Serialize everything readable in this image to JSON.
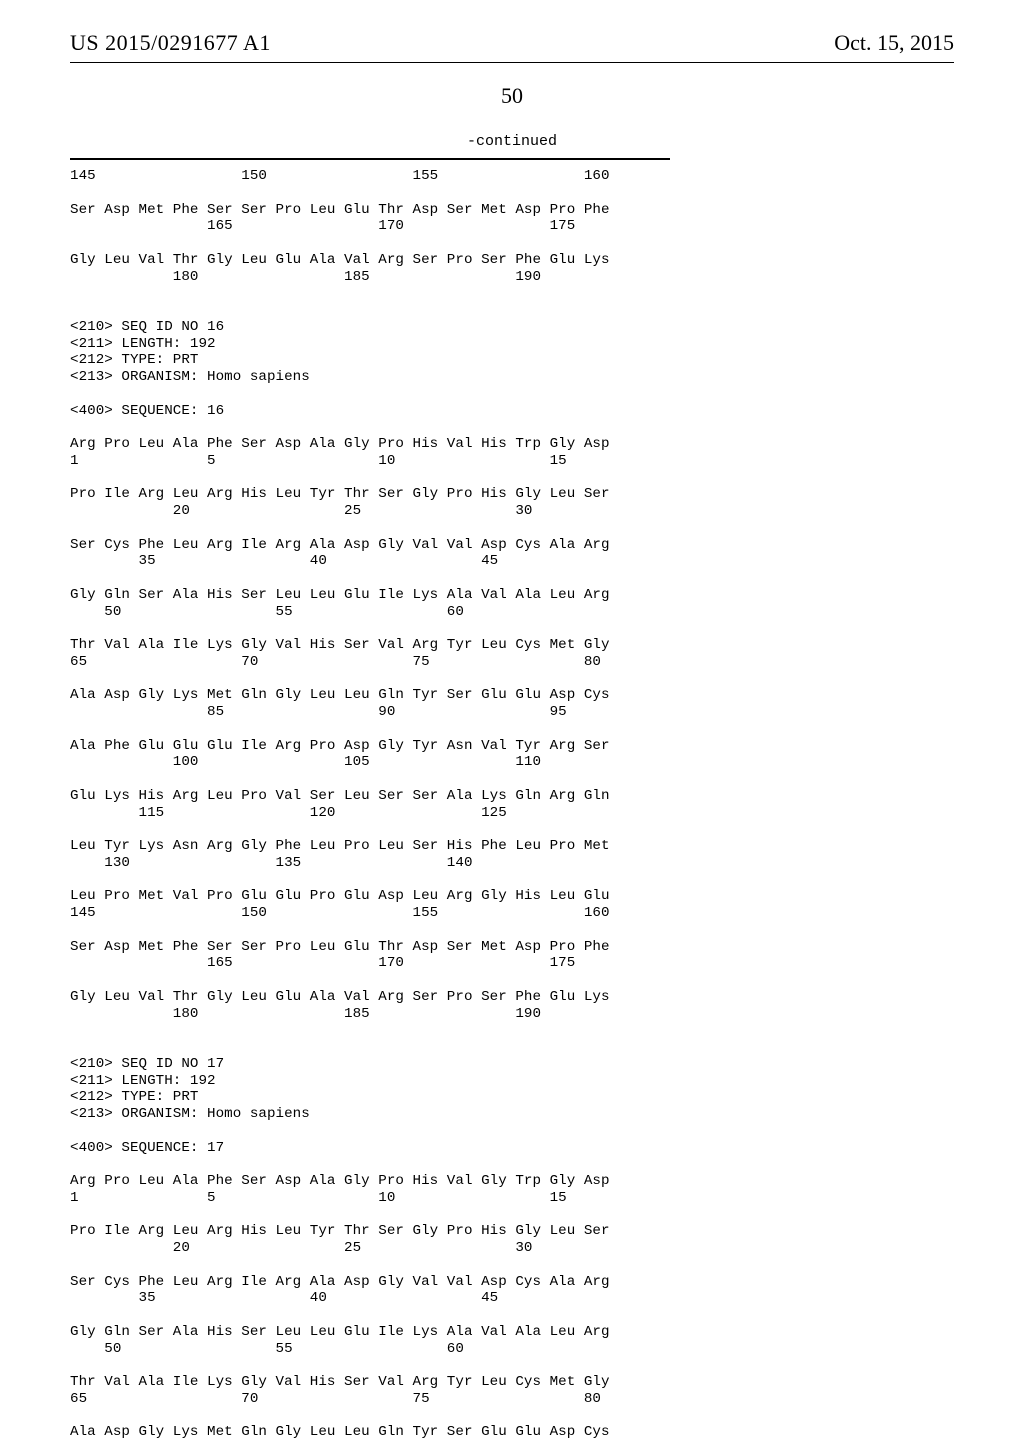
{
  "header": {
    "publication_number": "US 2015/0291677 A1",
    "publication_date": "Oct. 15, 2015"
  },
  "page_number": "50",
  "continued_label": "-continued",
  "sequence_text": "145                 150                 155                 160\n\nSer Asp Met Phe Ser Ser Pro Leu Glu Thr Asp Ser Met Asp Pro Phe\n                165                 170                 175\n\nGly Leu Val Thr Gly Leu Glu Ala Val Arg Ser Pro Ser Phe Glu Lys\n            180                 185                 190\n\n\n<210> SEQ ID NO 16\n<211> LENGTH: 192\n<212> TYPE: PRT\n<213> ORGANISM: Homo sapiens\n\n<400> SEQUENCE: 16\n\nArg Pro Leu Ala Phe Ser Asp Ala Gly Pro His Val His Trp Gly Asp\n1               5                   10                  15\n\nPro Ile Arg Leu Arg His Leu Tyr Thr Ser Gly Pro His Gly Leu Ser\n            20                  25                  30\n\nSer Cys Phe Leu Arg Ile Arg Ala Asp Gly Val Val Asp Cys Ala Arg\n        35                  40                  45\n\nGly Gln Ser Ala His Ser Leu Leu Glu Ile Lys Ala Val Ala Leu Arg\n    50                  55                  60\n\nThr Val Ala Ile Lys Gly Val His Ser Val Arg Tyr Leu Cys Met Gly\n65                  70                  75                  80\n\nAla Asp Gly Lys Met Gln Gly Leu Leu Gln Tyr Ser Glu Glu Asp Cys\n                85                  90                  95\n\nAla Phe Glu Glu Glu Ile Arg Pro Asp Gly Tyr Asn Val Tyr Arg Ser\n            100                 105                 110\n\nGlu Lys His Arg Leu Pro Val Ser Leu Ser Ser Ala Lys Gln Arg Gln\n        115                 120                 125\n\nLeu Tyr Lys Asn Arg Gly Phe Leu Pro Leu Ser His Phe Leu Pro Met\n    130                 135                 140\n\nLeu Pro Met Val Pro Glu Glu Pro Glu Asp Leu Arg Gly His Leu Glu\n145                 150                 155                 160\n\nSer Asp Met Phe Ser Ser Pro Leu Glu Thr Asp Ser Met Asp Pro Phe\n                165                 170                 175\n\nGly Leu Val Thr Gly Leu Glu Ala Val Arg Ser Pro Ser Phe Glu Lys\n            180                 185                 190\n\n\n<210> SEQ ID NO 17\n<211> LENGTH: 192\n<212> TYPE: PRT\n<213> ORGANISM: Homo sapiens\n\n<400> SEQUENCE: 17\n\nArg Pro Leu Ala Phe Ser Asp Ala Gly Pro His Val Gly Trp Gly Asp\n1               5                   10                  15\n\nPro Ile Arg Leu Arg His Leu Tyr Thr Ser Gly Pro His Gly Leu Ser\n            20                  25                  30\n\nSer Cys Phe Leu Arg Ile Arg Ala Asp Gly Val Val Asp Cys Ala Arg\n        35                  40                  45\n\nGly Gln Ser Ala His Ser Leu Leu Glu Ile Lys Ala Val Ala Leu Arg\n    50                  55                  60\n\nThr Val Ala Ile Lys Gly Val His Ser Val Arg Tyr Leu Cys Met Gly\n65                  70                  75                  80\n\nAla Asp Gly Lys Met Gln Gly Leu Leu Gln Tyr Ser Glu Glu Asp Cys"
}
